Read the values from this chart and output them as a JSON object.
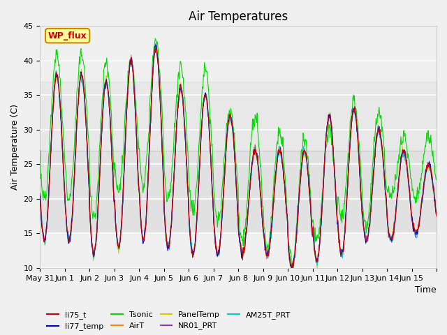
{
  "title": "Air Temperatures",
  "xlabel": "Time",
  "ylabel": "Air Temperature (C)",
  "ylim": [
    10,
    45
  ],
  "yticks": [
    10,
    15,
    20,
    25,
    30,
    35,
    40,
    45
  ],
  "x_tick_positions": [
    0,
    1,
    2,
    3,
    4,
    5,
    6,
    7,
    8,
    9,
    10,
    11,
    12,
    13,
    14,
    15,
    16
  ],
  "x_tick_labels": [
    "May 31",
    "Jun 1",
    "Jun 2",
    "Jun 3",
    "Jun 4",
    "Jun 5",
    "Jun 6",
    "Jun 7",
    "Jun 8",
    "Jun 9",
    "Jun 10",
    "Jun 11",
    "Jun 12",
    "Jun 13",
    "Jun 14",
    "Jun 15",
    ""
  ],
  "legend_entries": [
    {
      "label": "li75_t",
      "color": "#cc0000"
    },
    {
      "label": "li77_temp",
      "color": "#0000cc"
    },
    {
      "label": "Tsonic",
      "color": "#00dd00"
    },
    {
      "label": "AirT",
      "color": "#ff8800"
    },
    {
      "label": "PanelTemp",
      "color": "#cccc00"
    },
    {
      "label": "NR01_PRT",
      "color": "#9933cc"
    },
    {
      "label": "AM25T_PRT",
      "color": "#00cccc"
    }
  ],
  "wp_flux_box_color": "#ffff99",
  "wp_flux_text_color": "#cc0000",
  "bg_color": "#f0f0f0",
  "grid_color": "#ffffff",
  "title_fontsize": 12,
  "axis_label_fontsize": 9,
  "tick_fontsize": 8,
  "line_width": 0.8,
  "day_peaks": [
    38,
    38,
    37,
    40,
    42,
    36,
    35,
    32,
    27,
    27,
    27,
    32,
    33,
    30,
    27,
    25,
    25
  ],
  "day_mins": [
    14,
    14,
    12,
    13,
    14,
    13,
    12,
    12,
    12,
    12,
    10,
    11,
    12,
    14,
    14,
    15,
    15
  ],
  "tsonic_peaks": [
    41,
    41,
    40,
    40,
    43,
    39,
    39,
    33,
    32,
    30,
    29,
    30,
    34,
    33,
    29,
    29,
    29
  ],
  "tsonic_mins": [
    20,
    20,
    17,
    21,
    22,
    20,
    18,
    17,
    14,
    13,
    11,
    14,
    17,
    16,
    20,
    20,
    20
  ]
}
